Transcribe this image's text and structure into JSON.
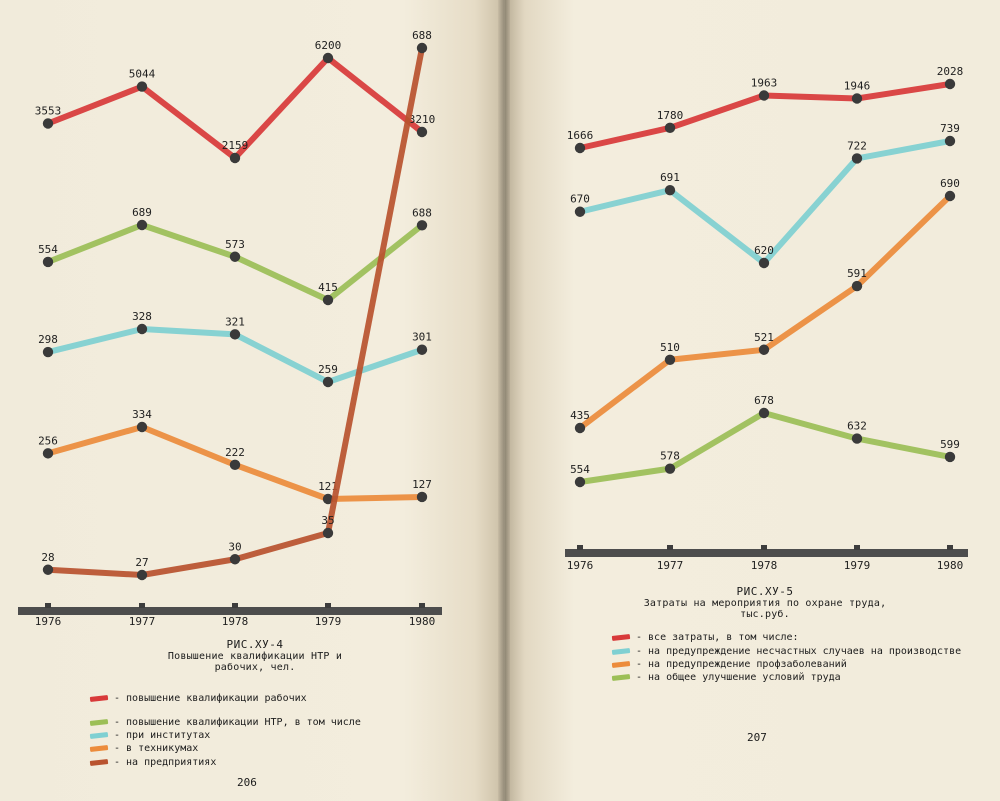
{
  "left_chart": {
    "caption_title": "РИС.ХУ-4",
    "caption_subtitle": "Повышение квалификации НТР и рабочих, чел.",
    "page_number": "206",
    "legend": [
      {
        "label": "- повышение квалификации рабочих",
        "color": "#d83a3a"
      },
      {
        "label": "- повышение квалификации НТР, в том числе",
        "color": "#9cbf57"
      },
      {
        "label": "- при институтах",
        "color": "#7fd0d2"
      },
      {
        "label": "- в техникумах",
        "color": "#ec8c3c"
      },
      {
        "label": "- на предприятиях",
        "color": "#b9532f"
      }
    ]
  },
  "right_chart": {
    "caption_title": "РИС.ХУ-5",
    "caption_subtitle": "Затраты на мероприятия по охране труда, тыс.руб.",
    "page_number": "207",
    "legend": [
      {
        "label": "- все затраты, в том числе:",
        "color": "#d83a3a"
      },
      {
        "label": "- на предупреждение несчастных случаев на производстве",
        "color": "#7fd0d2"
      },
      {
        "label": "- на предупреждение профзаболеваний",
        "color": "#ec8c3c"
      },
      {
        "label": "- на общее улучшение условий труда",
        "color": "#9cbf57"
      }
    ]
  },
  "chart_data": [
    {
      "type": "line",
      "title": "Повышение квалификации НТР и рабочих, чел.",
      "xlabel": "",
      "ylabel": "",
      "x": [
        "1976",
        "1977",
        "1978",
        "1979",
        "1980"
      ],
      "series": [
        {
          "name": "повышение квалификации рабочих",
          "color": "#d83a3a",
          "values": [
            3553,
            5044,
            2159,
            6200,
            3210
          ],
          "labels": [
            "3553",
            "5044",
            "2159",
            "6200",
            "3210"
          ]
        },
        {
          "name": "повышение квалификации НТР, в том числе",
          "color": "#9cbf57",
          "values": [
            554,
            689,
            573,
            415,
            688
          ],
          "labels": [
            "554",
            "689",
            "573",
            "415",
            "688"
          ]
        },
        {
          "name": "при институтах",
          "color": "#7fd0d2",
          "values": [
            298,
            328,
            321,
            259,
            301
          ],
          "labels": [
            "298",
            "328",
            "321",
            "259",
            "301"
          ]
        },
        {
          "name": "в техникумах",
          "color": "#ec8c3c",
          "values": [
            256,
            334,
            222,
            121,
            127
          ],
          "labels": [
            "256",
            "334",
            "222",
            "121",
            "127"
          ]
        },
        {
          "name": "на предприятиях",
          "color": "#b9532f",
          "values": [
            28,
            27,
            30,
            35,
            688
          ],
          "labels": [
            "28",
            "27",
            "30",
            "35",
            "688"
          ]
        }
      ]
    },
    {
      "type": "line",
      "title": "Затраты на мероприятия по охране труда, тыс.руб.",
      "xlabel": "",
      "ylabel": "",
      "x": [
        "1976",
        "1977",
        "1978",
        "1979",
        "1980"
      ],
      "series": [
        {
          "name": "все затраты, в том числе",
          "color": "#d83a3a",
          "values": [
            1666,
            1780,
            1963,
            1946,
            2028
          ],
          "labels": [
            "1666",
            "1780",
            "1963",
            "1946",
            "2028"
          ]
        },
        {
          "name": "на предупреждение несчастных случаев на производстве",
          "color": "#7fd0d2",
          "values": [
            670,
            691,
            620,
            722,
            739
          ],
          "labels": [
            "670",
            "691",
            "620",
            "722",
            "739"
          ]
        },
        {
          "name": "на предупреждение профзаболеваний",
          "color": "#ec8c3c",
          "values": [
            435,
            510,
            521,
            591,
            690
          ],
          "labels": [
            "435",
            "510",
            "521",
            "591",
            "690"
          ]
        },
        {
          "name": "на общее улучшение условий труда",
          "color": "#9cbf57",
          "values": [
            554,
            578,
            678,
            632,
            599
          ],
          "labels": [
            "554",
            "578",
            "678",
            "632",
            "599"
          ]
        }
      ]
    }
  ]
}
